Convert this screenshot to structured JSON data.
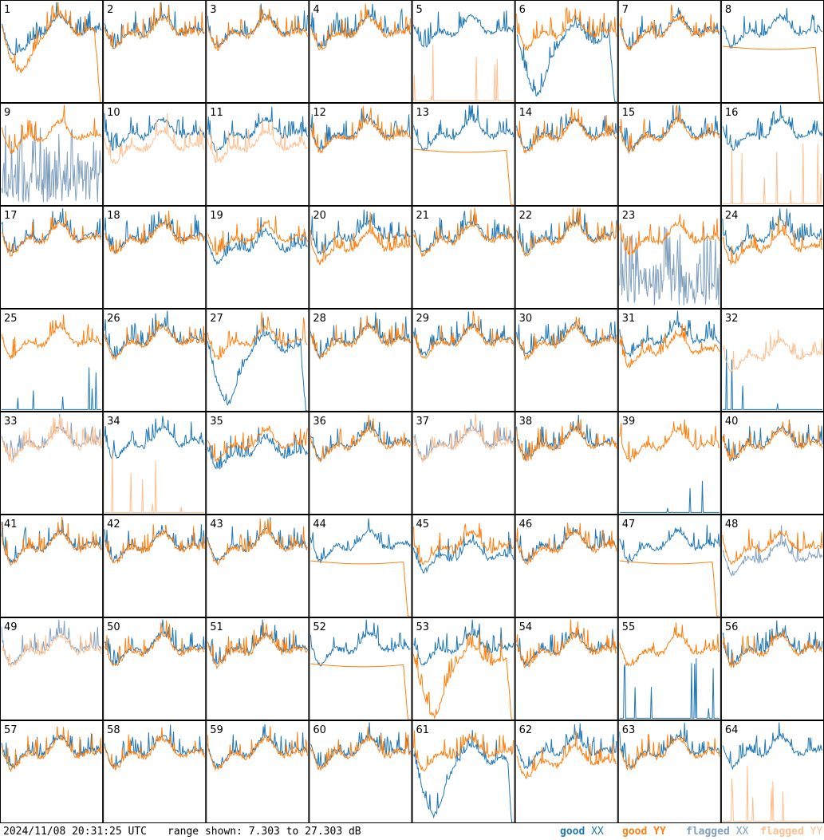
{
  "chart_data": {
    "type": "line",
    "panel_count": 64,
    "grid_columns": 8,
    "grid_rows": 8,
    "panel_labels": [
      "1",
      "2",
      "3",
      "4",
      "5",
      "6",
      "7",
      "8",
      "9",
      "10",
      "11",
      "12",
      "13",
      "14",
      "15",
      "16",
      "17",
      "18",
      "19",
      "20",
      "21",
      "22",
      "23",
      "24",
      "25",
      "26",
      "27",
      "28",
      "29",
      "30",
      "31",
      "32",
      "33",
      "34",
      "35",
      "36",
      "37",
      "38",
      "39",
      "40",
      "41",
      "42",
      "43",
      "44",
      "45",
      "46",
      "47",
      "48",
      "49",
      "50",
      "51",
      "52",
      "53",
      "54",
      "55",
      "56",
      "57",
      "58",
      "59",
      "60",
      "61",
      "62",
      "63",
      "64"
    ],
    "y_range_db": [
      7.303,
      27.303
    ],
    "series": [
      {
        "name": "good XX",
        "color": "#1f77b4"
      },
      {
        "name": "good YY",
        "color": "#ff7f0e"
      },
      {
        "name": "flagged XX",
        "color": "#7f9fbf"
      },
      {
        "name": "flagged YY",
        "color": "#ffbf8f"
      }
    ],
    "panel_styles": {
      "1": "deep_dip_both",
      "5": "yy_flatline",
      "6": "xx_deep_dip",
      "8": "yy_smooth_mid",
      "9": "xx_flagged_low",
      "10": "yy_flagged",
      "11": "yy_flagged",
      "13": "yy_smooth_mid",
      "16": "yy_flatline",
      "19": "xx_lower",
      "20": "yy_lower",
      "23": "xx_flagged_low",
      "24": "yy_lower",
      "25": "xx_flatline",
      "27": "xx_deep_dip",
      "31": "yy_lower",
      "32": "both_flagged_yy",
      "33": "both_flagged",
      "34": "yy_flatline",
      "35": "xx_lower",
      "37": "both_flagged",
      "39": "xx_flatline",
      "44": "yy_smooth_mid",
      "45": "xx_lower",
      "47": "yy_smooth_mid",
      "48": "xx_flagged_lower",
      "49": "both_flagged",
      "52": "yy_smooth_mid",
      "53": "yy_deep_dip",
      "55": "xx_flatline",
      "61": "xx_deep_dip",
      "62": "yy_lower",
      "64": "yy_flatline"
    }
  },
  "footer": {
    "timestamp": "2024/11/08 20:31:25 UTC",
    "range_text": "range shown: 7.303 to 27.303 dB",
    "legend": [
      {
        "prefix": "good ",
        "pol": "XX",
        "color": "#1f77b4"
      },
      {
        "prefix": "good ",
        "pol": "YY",
        "color": "#ff7f0e"
      },
      {
        "prefix": "flagged ",
        "pol": "XX",
        "color": "#7f9fbf"
      },
      {
        "prefix": "flagged ",
        "pol": "YY",
        "color": "#ffbf8f"
      }
    ]
  }
}
